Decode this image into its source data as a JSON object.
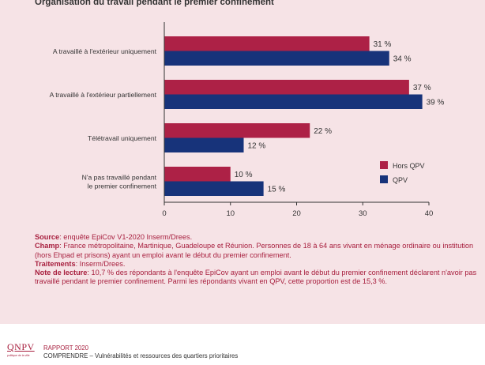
{
  "chart_data": {
    "type": "bar",
    "orientation": "horizontal",
    "title": "Organisation du travail pendant le premier confinement",
    "categories": [
      "A travaillé à l'extérieur uniquement",
      "A travaillé à l'extérieur partiellement",
      "Télétravail uniquement",
      "N'a pas travaillé pendant le premier confinement"
    ],
    "category_lines": [
      [
        "A travaillé à l'extérieur uniquement"
      ],
      [
        "A travaillé à l'extérieur partiellement"
      ],
      [
        "Télétravail uniquement"
      ],
      [
        "N'a pas travaillé pendant",
        "le premier confinement"
      ]
    ],
    "series": [
      {
        "name": "Hors QPV",
        "color": "#ad2146",
        "values": [
          31,
          37,
          22,
          10
        ],
        "labels": [
          "31 %",
          "37 %",
          "22 %",
          "10 %"
        ]
      },
      {
        "name": "QPV",
        "color": "#17337a",
        "values": [
          34,
          39,
          12,
          15
        ],
        "labels": [
          "34 %",
          "39 %",
          "12 %",
          "15 %"
        ]
      }
    ],
    "xlim": [
      0,
      40
    ],
    "xticks": [
      0,
      10,
      20,
      30,
      40
    ],
    "grid": false,
    "legend": "right"
  },
  "notes": {
    "source_label": "Source",
    "source_text": ": enquête EpiCov V1-2020 Inserm/Drees.",
    "champ_label": "Champ",
    "champ_text": ": France métropolitaine, Martinique, Guadeloupe et Réunion. Personnes de 18 à 64 ans vivant en ménage ordinaire ou institution (hors Ehpad et prisons) ayant un emploi avant le début du premier confinement.",
    "traitements_label": "Traitements",
    "traitements_text": ": Inserm/Drees.",
    "lecture_label": "Note de lecture",
    "lecture_text": ": 10,7 % des répondants à l'enquête EpiCov ayant un emploi avant le début du premier confinement déclarent n'avoir pas travaillé pendant le premier confinement. Parmi les répondants vivant en QPV, cette proportion est de 15,3 %."
  },
  "footer": {
    "logo": "QNPV",
    "logo_sub": "politique de la ville",
    "report": "RAPPORT 2020",
    "subtitle": "COMPRENDRE – Vulnérabilités et ressources des quartiers prioritaires"
  }
}
